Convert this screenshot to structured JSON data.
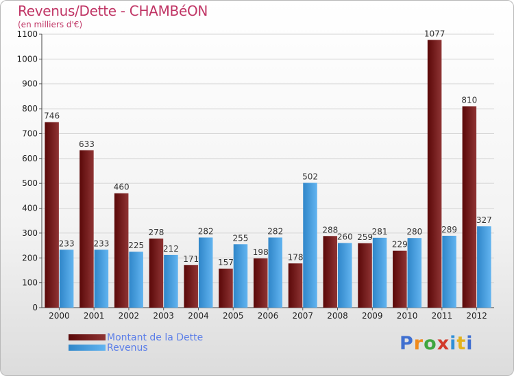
{
  "page": {
    "title": "Revenus/Dette - CHAMBéON",
    "subtitle": "(en milliers d'€)",
    "logo": [
      "P",
      "r",
      "o",
      "x",
      "i",
      "t",
      "i"
    ],
    "logo_colors": [
      "#3f6fd0",
      "#f08a1c",
      "#3fa63f",
      "#d23a2a",
      "#2e8fd8",
      "#e3b21c",
      "#3f6fd0"
    ]
  },
  "chart_data": {
    "type": "bar",
    "title": "Revenus/Dette - CHAMBéON",
    "ylabel": "(en milliers d'€)",
    "xlabel": "",
    "ylim": [
      0,
      1100
    ],
    "yticks": [
      0,
      100,
      200,
      300,
      400,
      500,
      600,
      700,
      800,
      900,
      1000,
      1100
    ],
    "grid": true,
    "legend_position": "bottom-left",
    "categories": [
      "2000",
      "2001",
      "2002",
      "2003",
      "2004",
      "2005",
      "2006",
      "2007",
      "2008",
      "2009",
      "2010",
      "2011",
      "2012"
    ],
    "series": [
      {
        "name": "Montant de la Dette",
        "color": "#7a1c1c",
        "values": [
          746,
          633,
          460,
          278,
          171,
          157,
          198,
          178,
          288,
          259,
          229,
          1077,
          810
        ]
      },
      {
        "name": "Revenus",
        "color": "#3a9be0",
        "values": [
          233,
          233,
          225,
          212,
          282,
          255,
          282,
          502,
          260,
          281,
          280,
          289,
          327
        ]
      }
    ]
  }
}
